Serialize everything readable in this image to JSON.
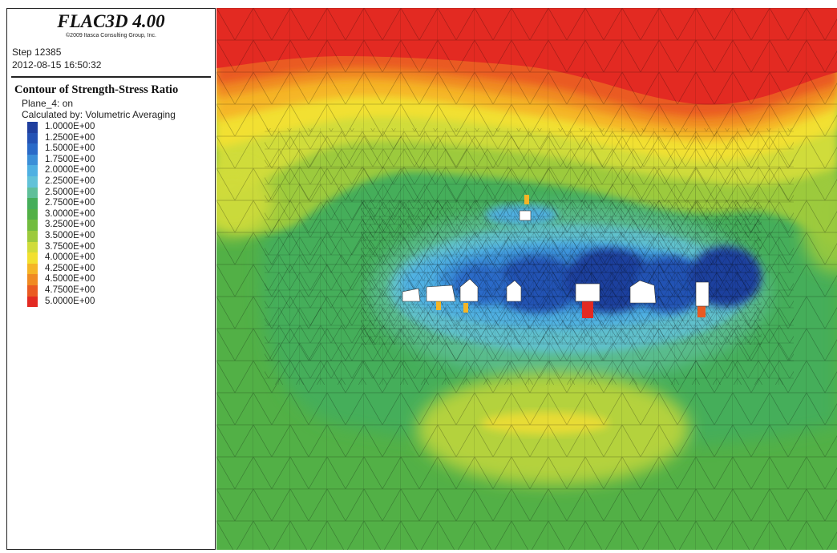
{
  "header": {
    "software": "FLAC3D 4.00",
    "copyright": "©2009 Itasca Consulting Group, Inc.",
    "step": "Step 12385",
    "timestamp": "2012-08-15 16:50:32"
  },
  "contour": {
    "title": "Contour of Strength-Stress Ratio",
    "plane": "Plane_4: on",
    "calculated_by": "Calculated by: Volumetric Averaging"
  },
  "legend": {
    "items": [
      {
        "label": "1.0000E+00",
        "color": "#1f3f9e"
      },
      {
        "label": "1.2500E+00",
        "color": "#2452b4"
      },
      {
        "label": "1.5000E+00",
        "color": "#2a6ac8"
      },
      {
        "label": "1.7500E+00",
        "color": "#3b8fd8"
      },
      {
        "label": "2.0000E+00",
        "color": "#4fb0e2"
      },
      {
        "label": "2.2500E+00",
        "color": "#62c2d8"
      },
      {
        "label": "2.5000E+00",
        "color": "#5fbf9a"
      },
      {
        "label": "2.7500E+00",
        "color": "#45ae5a"
      },
      {
        "label": "3.0000E+00",
        "color": "#52b046"
      },
      {
        "label": "3.2500E+00",
        "color": "#72bc3e"
      },
      {
        "label": "3.5000E+00",
        "color": "#9cca3c"
      },
      {
        "label": "3.7500E+00",
        "color": "#d0dc3a"
      },
      {
        "label": "4.0000E+00",
        "color": "#f2e030"
      },
      {
        "label": "4.2500E+00",
        "color": "#f5b526"
      },
      {
        "label": "4.5000E+00",
        "color": "#f08a22"
      },
      {
        "label": "4.7500E+00",
        "color": "#ea5a22"
      },
      {
        "label": "5.0000E+00",
        "color": "#e32a22"
      }
    ]
  }
}
